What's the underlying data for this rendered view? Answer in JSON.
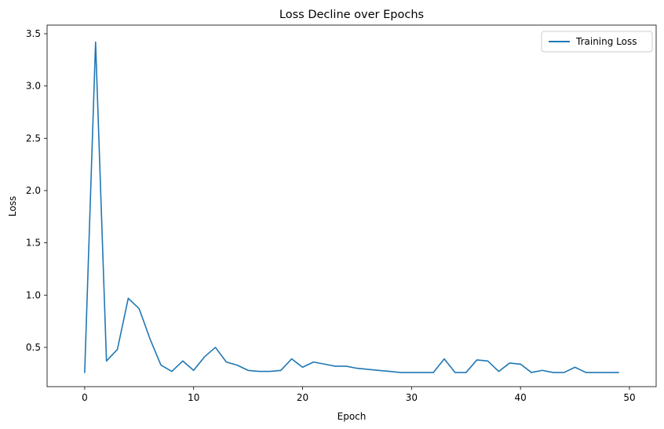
{
  "chart_data": {
    "type": "line",
    "title": "Loss Decline over Epochs",
    "xlabel": "Epoch",
    "ylabel": "Loss",
    "xlim": [
      -3.45,
      52.45
    ],
    "ylim": [
      0.1245,
      3.5825
    ],
    "xticks": [
      0,
      10,
      20,
      30,
      40,
      50
    ],
    "yticks": [
      0.5,
      1.0,
      1.5,
      2.0,
      2.5,
      3.0,
      3.5
    ],
    "ytick_labels": [
      "0.5",
      "1.0",
      "1.5",
      "2.0",
      "2.5",
      "3.0",
      "3.5"
    ],
    "grid": false,
    "legend_position": "top-right",
    "series": [
      {
        "name": "Training Loss",
        "color": "#1f77b4",
        "x": [
          0,
          1,
          2,
          3,
          4,
          5,
          6,
          7,
          8,
          9,
          10,
          11,
          12,
          13,
          14,
          15,
          16,
          17,
          18,
          19,
          20,
          21,
          22,
          23,
          24,
          25,
          26,
          27,
          28,
          29,
          30,
          31,
          32,
          33,
          34,
          35,
          36,
          37,
          38,
          39,
          40,
          41,
          42,
          43,
          44,
          45,
          46,
          47,
          48,
          49
        ],
        "values": [
          0.26,
          3.42,
          0.37,
          0.48,
          0.97,
          0.87,
          0.58,
          0.33,
          0.27,
          0.37,
          0.28,
          0.41,
          0.5,
          0.36,
          0.33,
          0.28,
          0.27,
          0.27,
          0.28,
          0.39,
          0.31,
          0.36,
          0.34,
          0.32,
          0.32,
          0.3,
          0.29,
          0.28,
          0.27,
          0.26,
          0.26,
          0.26,
          0.26,
          0.39,
          0.26,
          0.26,
          0.38,
          0.37,
          0.27,
          0.35,
          0.34,
          0.26,
          0.28,
          0.26,
          0.26,
          0.31,
          0.26,
          0.26,
          0.26,
          0.26
        ]
      }
    ]
  }
}
